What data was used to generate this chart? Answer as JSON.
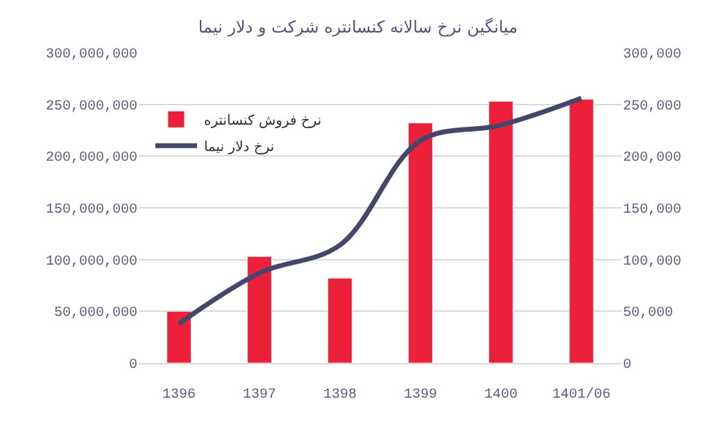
{
  "chart_data": {
    "type": "bar",
    "title": "میانگین نرخ سالانه کنسانتره شرکت و دلار نیما",
    "categories": [
      "1396",
      "1397",
      "1398",
      "1399",
      "1400",
      "1401/06"
    ],
    "series": [
      {
        "name": "نرخ فروش کنسانتره",
        "color": "#ec2139",
        "values": [
          50000000,
          103000000,
          82000000,
          232000000,
          253000000,
          255000000
        ]
      },
      {
        "name": "نرخ دلار نیما",
        "type": "line",
        "axis": "y2",
        "color": "#44466a",
        "values": [
          38000,
          87000,
          114000,
          215000,
          230000,
          256000
        ]
      }
    ],
    "ylim": [
      0,
      300000000
    ],
    "yticks": [
      {
        "value": 0,
        "label": "0"
      },
      {
        "value": 50000000,
        "label": "50,000,000"
      },
      {
        "value": 100000000,
        "label": "100,000,000"
      },
      {
        "value": 150000000,
        "label": "150,000,000"
      },
      {
        "value": 200000000,
        "label": "200,000,000"
      },
      {
        "value": 250000000,
        "label": "250,000,000"
      },
      {
        "value": 300000000,
        "label": "300,000,000"
      }
    ],
    "y2lim": [
      0,
      300000
    ],
    "y2ticks": [
      {
        "value": 0,
        "label": "0"
      },
      {
        "value": 50000,
        "label": "50,000"
      },
      {
        "value": 100000,
        "label": "100,000"
      },
      {
        "value": 150000,
        "label": "150,000"
      },
      {
        "value": 200000,
        "label": "200,000"
      },
      {
        "value": 250000,
        "label": "250,000"
      },
      {
        "value": 300000,
        "label": "300,000"
      }
    ],
    "grid": "y",
    "legend": "top left",
    "marker": "none",
    "line_style": "solid"
  }
}
